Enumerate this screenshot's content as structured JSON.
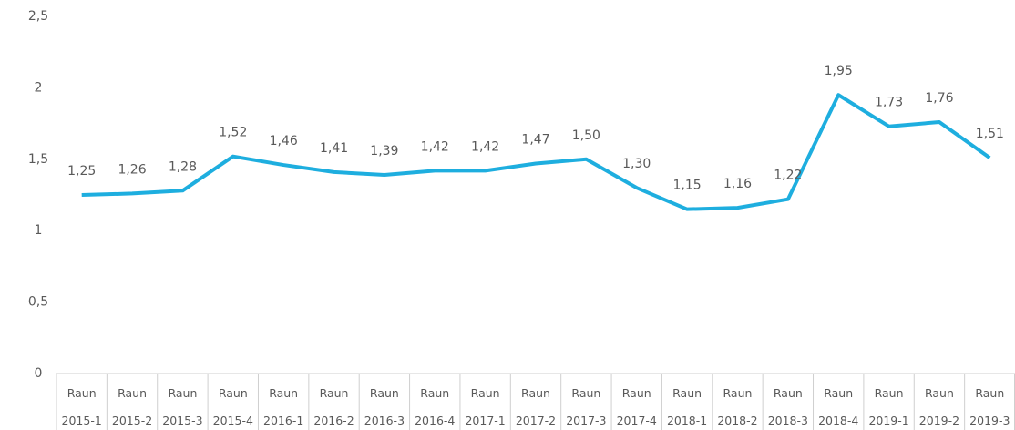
{
  "chart_data": {
    "type": "line",
    "categories": [
      [
        "Raun",
        "2015-1"
      ],
      [
        "Raun",
        "2015-2"
      ],
      [
        "Raun",
        "2015-3"
      ],
      [
        "Raun",
        "2015-4"
      ],
      [
        "Raun",
        "2016-1"
      ],
      [
        "Raun",
        "2016-2"
      ],
      [
        "Raun",
        "2016-3"
      ],
      [
        "Raun",
        "2016-4"
      ],
      [
        "Raun",
        "2017-1"
      ],
      [
        "Raun",
        "2017-2"
      ],
      [
        "Raun",
        "2017-3"
      ],
      [
        "Raun",
        "2017-4"
      ],
      [
        "Raun",
        "2018-1"
      ],
      [
        "Raun",
        "2018-2"
      ],
      [
        "Raun",
        "2018-3"
      ],
      [
        "Raun",
        "2018-4"
      ],
      [
        "Raun",
        "2019-1"
      ],
      [
        "Raun",
        "2019-2"
      ],
      [
        "Raun",
        "2019-3"
      ]
    ],
    "values": [
      1.25,
      1.26,
      1.28,
      1.52,
      1.46,
      1.41,
      1.39,
      1.42,
      1.42,
      1.47,
      1.5,
      1.3,
      1.15,
      1.16,
      1.22,
      1.95,
      1.73,
      1.76,
      1.51
    ],
    "value_labels": [
      "1,25",
      "1,26",
      "1,28",
      "1,52",
      "1,46",
      "1,41",
      "1,39",
      "1,42",
      "1,42",
      "1,47",
      "1,50",
      "1,30",
      "1,15",
      "1,16",
      "1,22",
      "1,95",
      "1,73",
      "1,76",
      "1,51"
    ],
    "color": "#1eaedf",
    "ylim": [
      0,
      2.5
    ],
    "yticks": [
      0,
      {
        "value": 0.5,
        "label": "0,5"
      },
      1,
      {
        "value": 1.5,
        "label": "1,5"
      },
      2,
      {
        "value": 2.5,
        "label": "2,5"
      }
    ],
    "grid": false
  }
}
